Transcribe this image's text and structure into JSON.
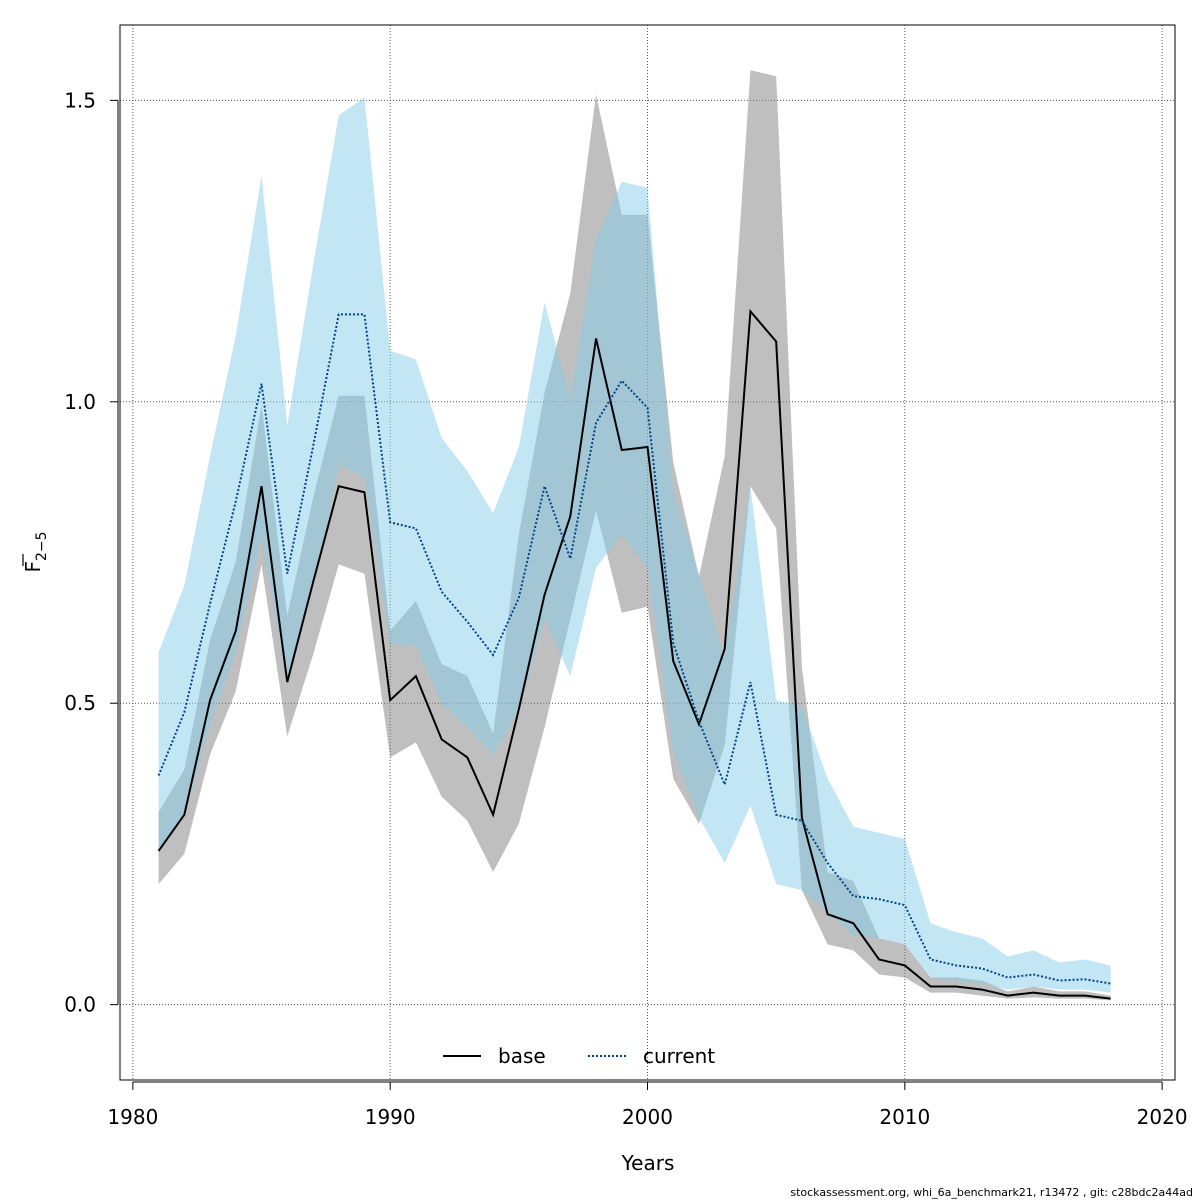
{
  "chart_data": {
    "type": "line",
    "xlabel": "Years",
    "ylabel_main": "F",
    "ylabel_sub": "2−5",
    "xlim": [
      1979.5,
      2020.5
    ],
    "ylim": [
      -0.125,
      1.625
    ],
    "x_ticks": [
      1980,
      1990,
      2000,
      2010,
      2020
    ],
    "y_ticks": [
      0.0,
      0.5,
      1.0,
      1.5
    ],
    "x_tick_labels": [
      "1980",
      "1990",
      "2000",
      "2010",
      "2020"
    ],
    "y_tick_labels": [
      "0.0",
      "0.5",
      "1.0",
      "1.5"
    ],
    "grid": true,
    "legend_position": "bottom",
    "x": [
      1981,
      1982,
      1983,
      1984,
      1985,
      1986,
      1987,
      1988,
      1989,
      1990,
      1991,
      1992,
      1993,
      1994,
      1995,
      1996,
      1997,
      1998,
      1999,
      2000,
      2001,
      2002,
      2003,
      2004,
      2005,
      2006,
      2007,
      2008,
      2009,
      2010,
      2011,
      2012,
      2013,
      2014,
      2015,
      2016,
      2017,
      2018
    ],
    "series": [
      {
        "name": "base",
        "line_color": "#000000",
        "band_color": "#808080",
        "dash": "solid",
        "values": [
          0.255,
          0.315,
          0.505,
          0.62,
          0.86,
          0.535,
          0.7,
          0.86,
          0.85,
          0.505,
          0.545,
          0.44,
          0.41,
          0.315,
          0.49,
          0.68,
          0.81,
          1.105,
          0.92,
          0.925,
          0.57,
          0.465,
          0.59,
          1.15,
          1.1,
          0.31,
          0.15,
          0.135,
          0.075,
          0.065,
          0.03,
          0.03,
          0.025,
          0.015,
          0.02,
          0.015,
          0.015,
          0.01
        ],
        "lower": [
          0.2,
          0.25,
          0.415,
          0.52,
          0.73,
          0.445,
          0.58,
          0.73,
          0.715,
          0.41,
          0.435,
          0.345,
          0.305,
          0.22,
          0.3,
          0.46,
          0.64,
          0.82,
          0.65,
          0.66,
          0.375,
          0.3,
          0.43,
          0.86,
          0.79,
          0.19,
          0.1,
          0.09,
          0.05,
          0.045,
          0.02,
          0.02,
          0.015,
          0.01,
          0.012,
          0.01,
          0.01,
          0.007
        ],
        "upper": [
          0.32,
          0.39,
          0.605,
          0.735,
          0.995,
          0.645,
          0.84,
          1.01,
          1.01,
          0.62,
          0.67,
          0.565,
          0.545,
          0.45,
          0.78,
          1.015,
          1.18,
          1.51,
          1.31,
          1.31,
          0.9,
          0.71,
          0.91,
          1.55,
          1.54,
          0.56,
          0.22,
          0.205,
          0.11,
          0.1,
          0.045,
          0.045,
          0.04,
          0.022,
          0.03,
          0.022,
          0.022,
          0.015
        ]
      },
      {
        "name": "current",
        "line_color": "#004488",
        "band_color": "#87ceeb",
        "dash": "dotted",
        "values": [
          0.38,
          0.485,
          0.665,
          0.835,
          1.03,
          0.715,
          0.925,
          1.145,
          1.145,
          0.8,
          0.79,
          0.685,
          0.635,
          0.58,
          0.675,
          0.86,
          0.74,
          0.965,
          1.035,
          0.99,
          0.6,
          0.47,
          0.365,
          0.535,
          0.315,
          0.305,
          0.235,
          0.18,
          0.175,
          0.165,
          0.075,
          0.065,
          0.06,
          0.045,
          0.05,
          0.04,
          0.042,
          0.035
        ],
        "lower": [
          0.255,
          0.315,
          0.465,
          0.585,
          0.775,
          0.535,
          0.69,
          0.895,
          0.875,
          0.6,
          0.595,
          0.5,
          0.46,
          0.415,
          0.49,
          0.64,
          0.545,
          0.725,
          0.78,
          0.725,
          0.42,
          0.31,
          0.235,
          0.33,
          0.2,
          0.19,
          0.155,
          0.115,
          0.11,
          0.1,
          0.045,
          0.04,
          0.035,
          0.025,
          0.03,
          0.025,
          0.025,
          0.02
        ],
        "upper": [
          0.585,
          0.695,
          0.91,
          1.11,
          1.375,
          0.96,
          1.225,
          1.475,
          1.505,
          1.085,
          1.07,
          0.94,
          0.885,
          0.815,
          0.925,
          1.165,
          1.005,
          1.27,
          1.365,
          1.355,
          0.85,
          0.715,
          0.575,
          0.86,
          0.505,
          0.495,
          0.375,
          0.295,
          0.285,
          0.275,
          0.135,
          0.12,
          0.11,
          0.08,
          0.09,
          0.07,
          0.075,
          0.065
        ]
      }
    ]
  },
  "footer": "stockassessment.org, whi_6a_benchmark21, r13472 , git: c28bdc2a44ad"
}
